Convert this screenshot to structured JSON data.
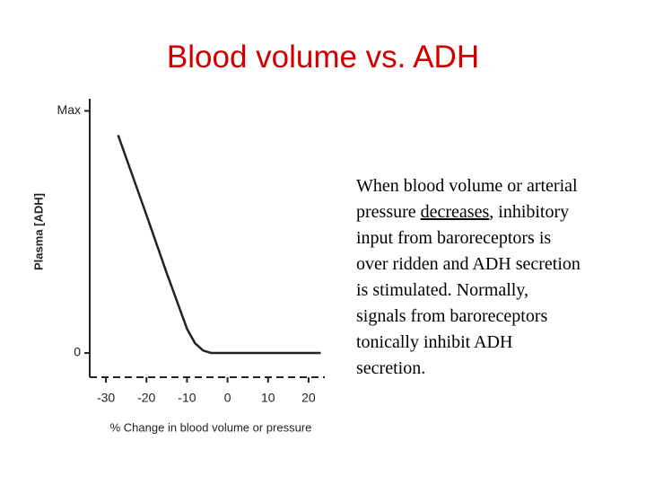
{
  "chart_data": {
    "type": "line",
    "title": "Blood volume vs. ADH",
    "x_label": "% Change in blood volume or pressure",
    "y_label": "Plasma [ADH]",
    "x": [
      -27,
      -20,
      -15,
      -10,
      -8,
      -6,
      -4,
      0,
      10,
      20,
      23
    ],
    "series": [
      {
        "name": "Plasma ADH",
        "color": "#222222",
        "values": [
          0.9,
          0.57,
          0.33,
          0.1,
          0.04,
          0.01,
          0,
          0,
          0,
          0,
          0
        ]
      }
    ],
    "xlim": [
      -34,
      24
    ],
    "xticks": [
      -30,
      -20,
      -10,
      0,
      10,
      20
    ],
    "ylim": [
      -0.1,
      1.05
    ],
    "yticks": [
      0,
      {
        "value": 1,
        "label": "Max"
      }
    ]
  },
  "text_parts": [
    "When blood volume or arterial pressure ",
    "decreases",
    ", inhibitory input from baroreceptors is over ridden and ADH secretion is stimulated. Normally, signals from baroreceptors tonically inhibit ADH secretion."
  ]
}
